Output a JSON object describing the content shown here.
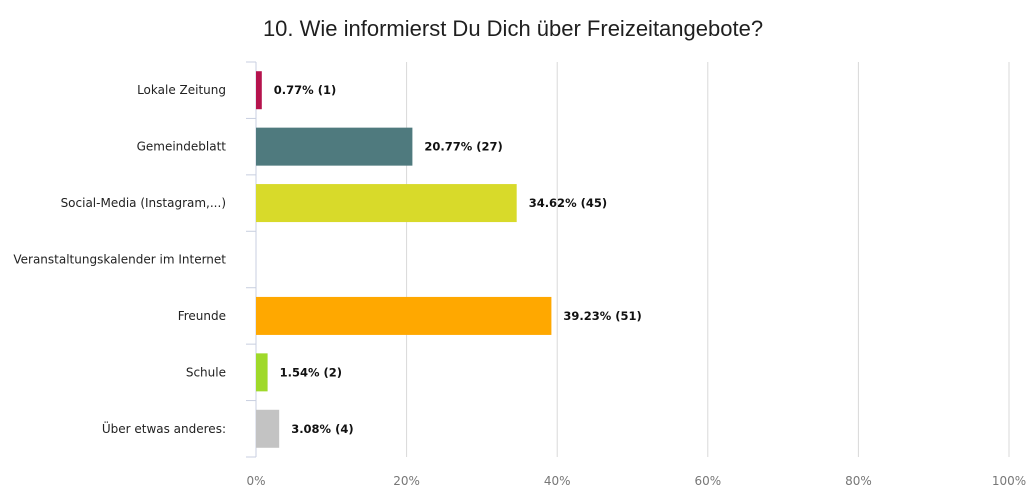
{
  "chart_data": {
    "type": "bar",
    "orientation": "horizontal",
    "title": "10. Wie informierst Du Dich über Freizeitangebote?",
    "xlabel": "",
    "ylabel": "",
    "xlim": [
      0,
      100
    ],
    "grid": true,
    "legend": "none",
    "categories": [
      "Lokale Zeitung",
      "Gemeindeblatt",
      "Social-Media (Instagram,...)",
      "Veranstaltungskalender im Internet",
      "Freunde",
      "Schule",
      "Über etwas anderes:"
    ],
    "values": [
      0.77,
      20.77,
      34.62,
      0,
      39.23,
      1.54,
      3.08
    ],
    "data_labels": [
      "0.77% (1)",
      "20.77% (27)",
      "34.62% (45)",
      "",
      "39.23% (51)",
      "1.54% (2)",
      "3.08% (4)"
    ],
    "colors": [
      "#b5134d",
      "#4f7a7e",
      "#d8da2a",
      "#888888",
      "#ffa800",
      "#9fd92a",
      "#c3c3c3"
    ],
    "ticks": [
      0,
      20,
      40,
      60,
      80,
      100
    ],
    "tick_labels": [
      "0%",
      "20%",
      "40%",
      "60%",
      "80%",
      "100%"
    ]
  }
}
